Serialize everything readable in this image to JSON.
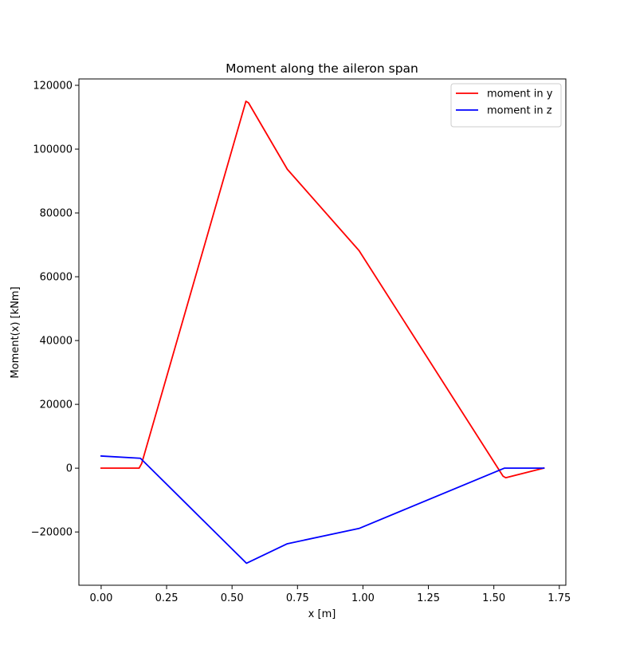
{
  "chart_data": {
    "type": "line",
    "title": "Moment along the aileron span",
    "xlabel": "x [m]",
    "ylabel": "Moment(x) [kNm]",
    "xlim": [
      -0.085,
      1.775
    ],
    "ylim": [
      -36700,
      122000
    ],
    "xticks": [
      0.0,
      0.25,
      0.5,
      0.75,
      1.0,
      1.25,
      1.5,
      1.75
    ],
    "xtick_labels": [
      "0.00",
      "0.25",
      "0.50",
      "0.75",
      "1.00",
      "1.25",
      "1.50",
      "1.75"
    ],
    "yticks": [
      -20000,
      0,
      20000,
      40000,
      60000,
      80000,
      100000,
      120000
    ],
    "ytick_labels": [
      "−20000",
      "0",
      "20000",
      "40000",
      "60000",
      "80000",
      "100000",
      "120000"
    ],
    "grid": false,
    "legend_position": "upper right",
    "series": [
      {
        "name": "moment in y",
        "color": "#ff0000",
        "x": [
          0.0,
          0.145,
          0.155,
          0.553,
          0.563,
          0.711,
          0.985,
          1.535,
          1.545,
          1.691
        ],
        "y": [
          0,
          0,
          1500,
          115000,
          114500,
          93700,
          68200,
          -2500,
          -3000,
          0
        ]
      },
      {
        "name": "moment in z",
        "color": "#0000ff",
        "x": [
          0.0,
          0.15,
          0.555,
          0.711,
          0.985,
          1.54,
          1.691
        ],
        "y": [
          3800,
          3100,
          -29800,
          -23700,
          -18900,
          0,
          0
        ]
      }
    ]
  }
}
